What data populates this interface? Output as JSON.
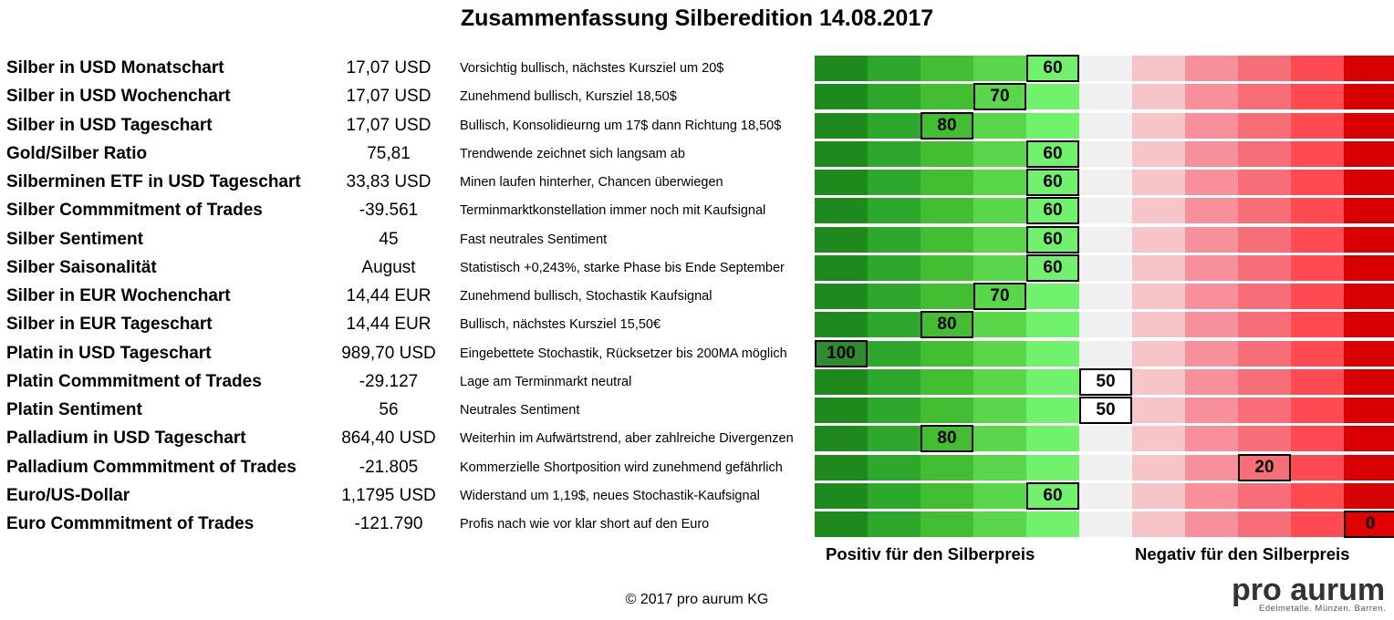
{
  "title": "Zusammenfassung Silberedition 14.08.2017",
  "colors": {
    "scale": [
      "#1e8a1e",
      "#2da82d",
      "#43be33",
      "#59d64a",
      "#70f26c",
      "#f0f0f0",
      "#f7c4c8",
      "#f7909a",
      "#f76d78",
      "#ff4a52",
      "#d80000"
    ],
    "marker_fill_positive_dark": "#2d8c2d",
    "marker_fill_neutral": "#ffffff",
    "marker_fill_negative": "#e00000"
  },
  "scale_steps": [
    100,
    90,
    80,
    70,
    60,
    50,
    40,
    30,
    20,
    10,
    0
  ],
  "rows": [
    {
      "label": "Silber in USD Monatschart",
      "value": "17,07 USD",
      "comment": "Vorsichtig bullisch, nächstes Kursziel um 20$",
      "score": 60,
      "score_label": "60"
    },
    {
      "label": "Silber in USD Wochenchart",
      "value": "17,07 USD",
      "comment": "Zunehmend bullisch, Kursziel 18,50$",
      "score": 70,
      "score_label": "70"
    },
    {
      "label": "Silber in USD Tageschart",
      "value": "17,07 USD",
      "comment": "Bullisch, Konsolidieurng um 17$ dann Richtung 18,50$",
      "score": 80,
      "score_label": "80"
    },
    {
      "label": "Gold/Silber Ratio",
      "value": "75,81",
      "comment": "Trendwende zeichnet sich langsam ab",
      "score": 60,
      "score_label": "60"
    },
    {
      "label": "Silberminen ETF in USD Tageschart",
      "value": "33,83 USD",
      "comment": "Minen laufen hinterher, Chancen überwiegen",
      "score": 60,
      "score_label": "60"
    },
    {
      "label": "Silber Commmitment of Trades",
      "value": "-39.561",
      "comment": "Terminmarktkonstellation immer noch mit Kaufsignal",
      "score": 60,
      "score_label": "60"
    },
    {
      "label": "Silber Sentiment",
      "value": "45",
      "comment": "Fast neutrales Sentiment",
      "score": 60,
      "score_label": "60"
    },
    {
      "label": "Silber Saisonalität",
      "value": "August",
      "comment": "Statistisch +0,243%, starke Phase bis Ende September",
      "score": 60,
      "score_label": "60"
    },
    {
      "label": "Silber in EUR Wochenchart",
      "value": "14,44 EUR",
      "comment": "Zunehmend bullisch, Stochastik Kaufsignal",
      "score": 70,
      "score_label": "70"
    },
    {
      "label": "Silber in EUR Tageschart",
      "value": "14,44 EUR",
      "comment": "Bullisch, nächstes Kursziel 15,50€",
      "score": 80,
      "score_label": "80"
    },
    {
      "label": "Platin in USD Tageschart",
      "value": "989,70 USD",
      "comment": "Eingebettete Stochastik, Rücksetzer bis 200MA möglich",
      "score": 100,
      "score_label": "100"
    },
    {
      "label": "Platin Commmitment of Trades",
      "value": "-29.127",
      "comment": "Lage am Terminmarkt neutral",
      "score": 50,
      "score_label": "50"
    },
    {
      "label": "Platin Sentiment",
      "value": "56",
      "comment": "Neutrales Sentiment",
      "score": 50,
      "score_label": "50"
    },
    {
      "label": "Palladium in USD Tageschart",
      "value": "864,40 USD",
      "comment": "Weiterhin im Aufwärtstrend, aber zahlreiche Divergenzen",
      "score": 80,
      "score_label": "80"
    },
    {
      "label": "Palladium Commmitment of Trades",
      "value": "-21.805",
      "comment": "Kommerzielle Shortposition wird zunehmend gefährlich",
      "score": 20,
      "score_label": "20"
    },
    {
      "label": "Euro/US-Dollar",
      "value": "1,1795 USD",
      "comment": "Widerstand um 1,19$, neues Stochastik-Kaufsignal",
      "score": 60,
      "score_label": "60"
    },
    {
      "label": "Euro Commmitment of Trades",
      "value": "-121.790",
      "comment": "Profis nach wie vor klar short auf den Euro",
      "score": 0,
      "score_label": "0"
    }
  ],
  "captions": {
    "positive": "Positiv für den Silberpreis",
    "negative": "Negativ für den Silberpreis"
  },
  "footer": "© 2017 pro aurum KG",
  "logo": {
    "main": "pro aurum",
    "sub": "Edelmetalle. Münzen. Barren."
  },
  "chart_data": {
    "type": "table",
    "title": "Zusammenfassung Silberedition 14.08.2017",
    "scale_range": [
      100,
      0
    ],
    "categories": [
      "Silber in USD Monatschart",
      "Silber in USD Wochenchart",
      "Silber in USD Tageschart",
      "Gold/Silber Ratio",
      "Silberminen ETF in USD Tageschart",
      "Silber Commmitment of Trades",
      "Silber Sentiment",
      "Silber Saisonalität",
      "Silber in EUR Wochenchart",
      "Silber in EUR Tageschart",
      "Platin in USD Tageschart",
      "Platin Commmitment of Trades",
      "Platin Sentiment",
      "Palladium in USD Tageschart",
      "Palladium Commmitment of Trades",
      "Euro/US-Dollar",
      "Euro Commmitment of Trades"
    ],
    "values": [
      60,
      70,
      80,
      60,
      60,
      60,
      60,
      60,
      70,
      80,
      100,
      50,
      50,
      80,
      20,
      60,
      0
    ],
    "legend": [
      "Positiv für den Silberpreis",
      "Negativ für den Silberpreis"
    ]
  }
}
